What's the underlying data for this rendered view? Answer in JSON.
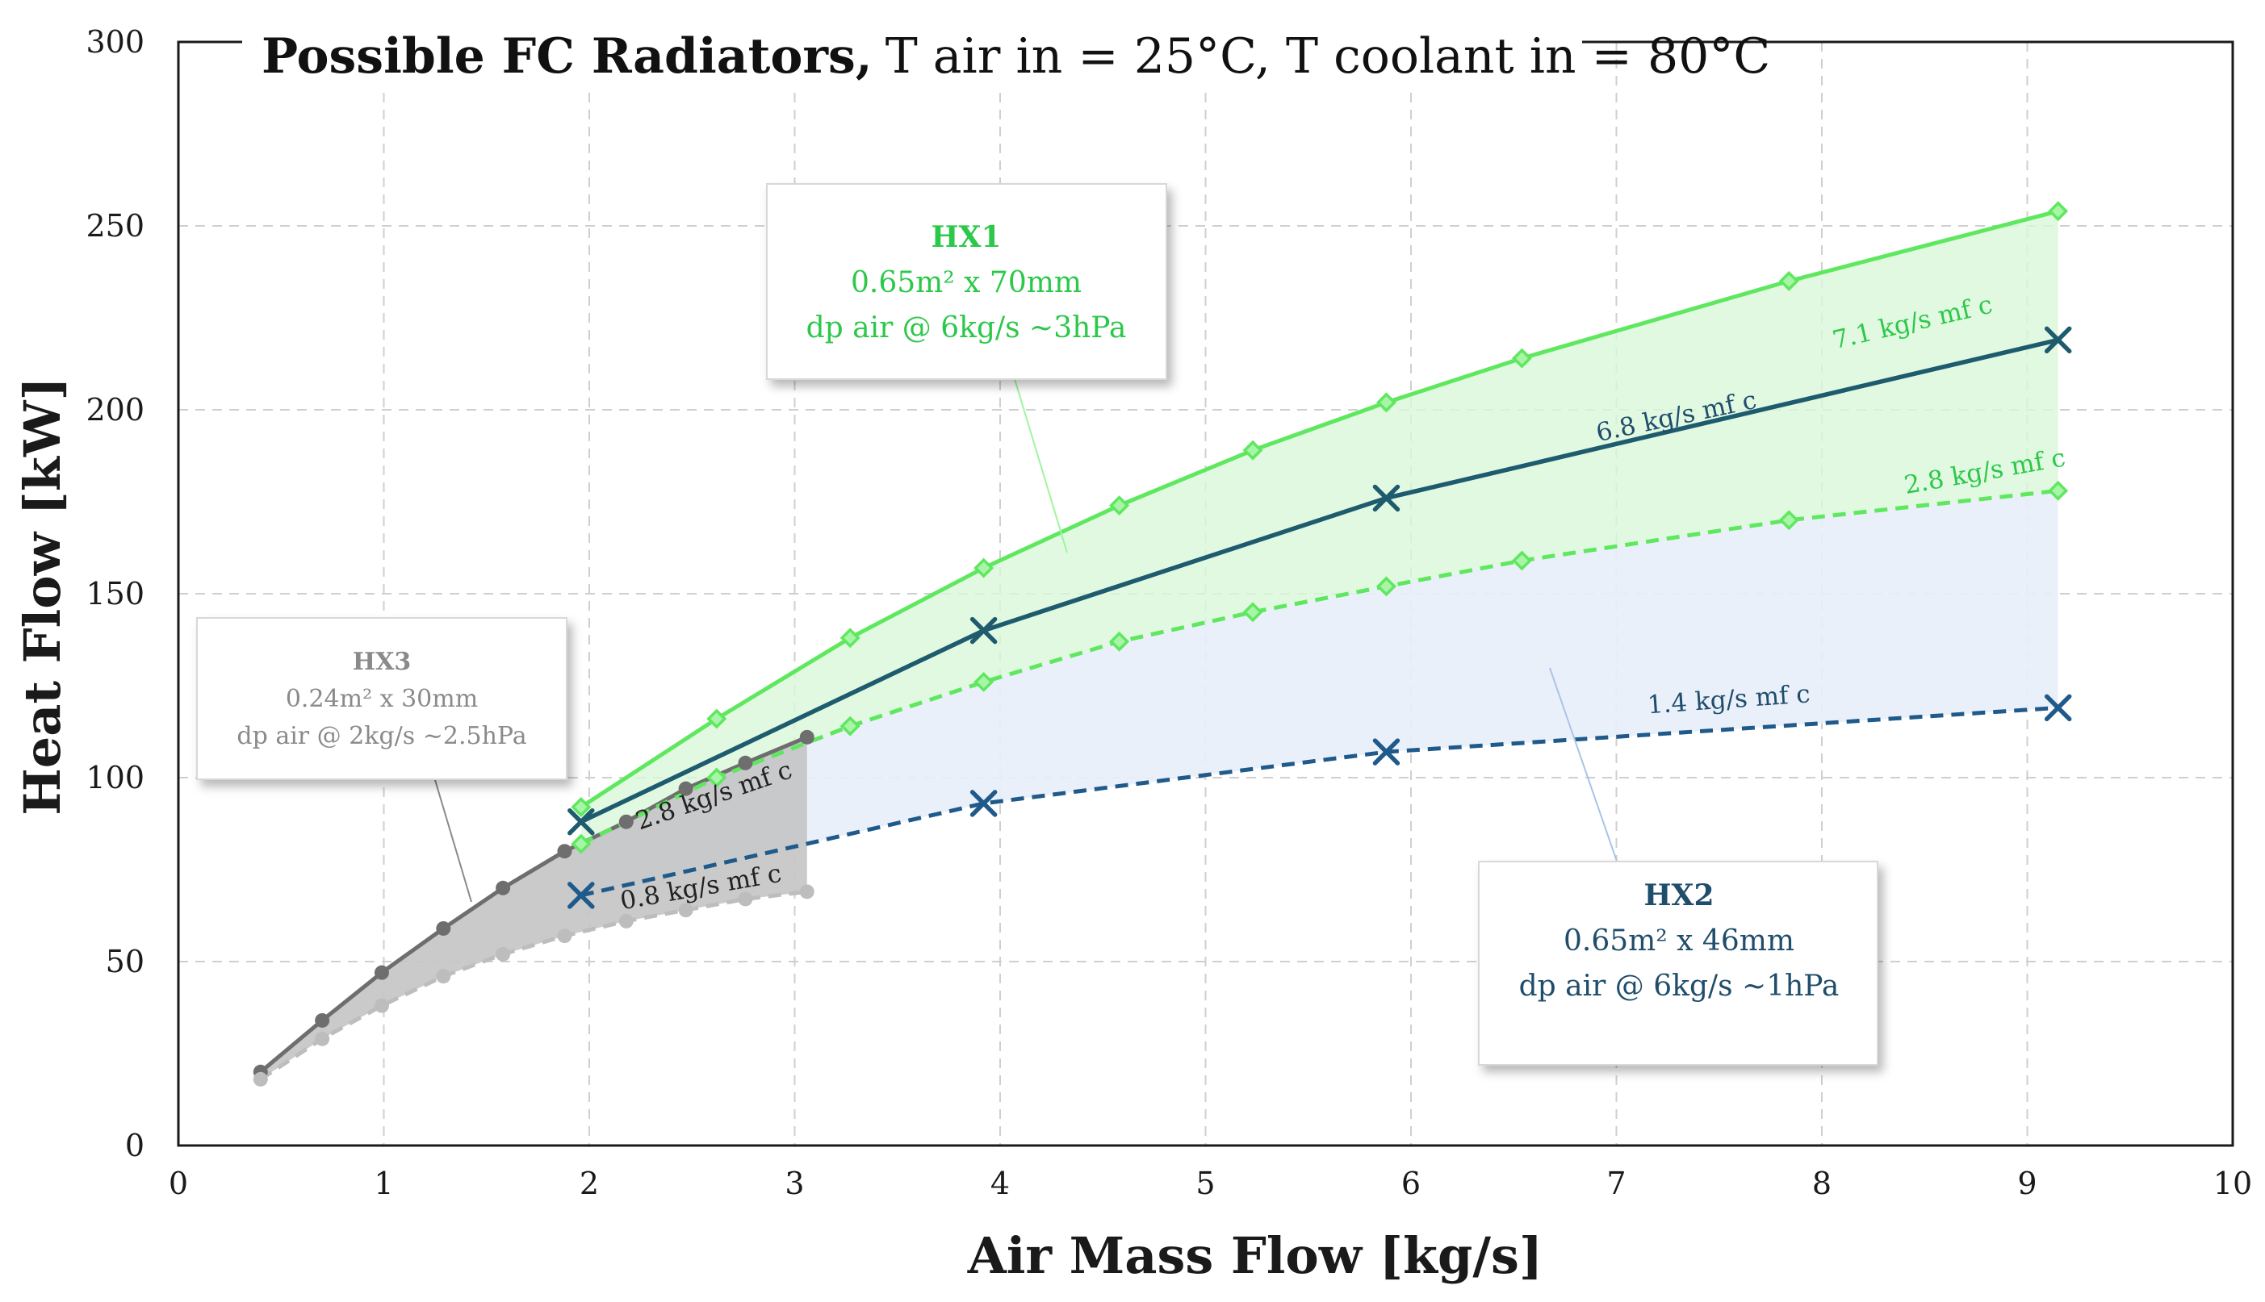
{
  "chart_data": {
    "type": "line",
    "title_bold": "Possible FC Radiators,",
    "title_rest": "T air in = 25°C, T coolant in = 80°C",
    "xlabel": "Air Mass Flow [kg/s]",
    "ylabel": "Heat Flow [kW]",
    "xlim": [
      0,
      10
    ],
    "ylim": [
      0,
      300
    ],
    "xticks": [
      "0",
      "1",
      "2",
      "3",
      "4",
      "5",
      "6",
      "7",
      "8",
      "9",
      "10"
    ],
    "yticks": [
      "0",
      "50",
      "100",
      "150",
      "200",
      "250",
      "300"
    ],
    "grid": true,
    "colors": {
      "hx1": "#5fe85f",
      "hx2_dark": "#1e5b6e",
      "hx2_light": "#1f5a8a",
      "hx3_dark": "#6e6e6e",
      "hx3_light": "#bdbdbd",
      "hx1_fill": "#d9f7d9",
      "hx2_fill": "#e8eef9",
      "hx3_fill": "#c4c4c4"
    },
    "series": [
      {
        "name": "HX1 7.1 kg/s mf c",
        "label": "7.1 kg/s mf c",
        "group": "HX1",
        "style": "solid",
        "marker": "diamond",
        "x": [
          1.96,
          2.62,
          3.27,
          3.92,
          4.58,
          5.23,
          5.88,
          6.54,
          7.84,
          9.15
        ],
        "y": [
          92,
          116,
          138,
          157,
          174,
          189,
          202,
          214,
          235,
          254
        ]
      },
      {
        "name": "HX1 2.8 kg/s mf c",
        "label": "2.8 kg/s mf c",
        "group": "HX1",
        "style": "dashed",
        "marker": "diamond",
        "x": [
          1.96,
          2.62,
          3.27,
          3.92,
          4.58,
          5.23,
          5.88,
          6.54,
          7.84,
          9.15
        ],
        "y": [
          82,
          100,
          114,
          126,
          137,
          145,
          152,
          159,
          170,
          178
        ]
      },
      {
        "name": "HX2 6.8 kg/s mf c",
        "label": "6.8 kg/s mf c",
        "group": "HX2",
        "style": "solid",
        "marker": "x",
        "x": [
          1.96,
          3.92,
          5.88,
          9.15
        ],
        "y": [
          88,
          140,
          176,
          219
        ]
      },
      {
        "name": "HX2 1.4 kg/s mf c",
        "label": "1.4 kg/s mf c",
        "group": "HX2",
        "style": "dashed",
        "marker": "x",
        "x": [
          1.96,
          3.92,
          5.88,
          9.15
        ],
        "y": [
          68,
          93,
          107,
          119
        ]
      },
      {
        "name": "HX3 2.8 kg/s mf c",
        "label": "2.8 kg/s mf c",
        "group": "HX3",
        "style": "solid",
        "marker": "circle",
        "x": [
          0.4,
          0.7,
          0.99,
          1.29,
          1.58,
          1.88,
          2.18,
          2.47,
          2.76,
          3.06
        ],
        "y": [
          20,
          34,
          47,
          59,
          70,
          80,
          88,
          97,
          104,
          111
        ]
      },
      {
        "name": "HX3 0.8 kg/s mf c",
        "label": "0.8 kg/s mf c",
        "group": "HX3",
        "style": "dashed",
        "marker": "circle",
        "x": [
          0.4,
          0.7,
          0.99,
          1.29,
          1.58,
          1.88,
          2.18,
          2.47,
          2.76,
          3.06
        ],
        "y": [
          18,
          29,
          38,
          46,
          52,
          57,
          61,
          64,
          67,
          69
        ]
      }
    ],
    "annotations": {
      "hx1": {
        "title": "HX1",
        "line1": "0.65m² x 70mm",
        "line2": "dp air @ 6kg/s ~3hPa"
      },
      "hx2": {
        "title": "HX2",
        "line1": "0.65m² x 46mm",
        "line2": "dp air @ 6kg/s ~1hPa"
      },
      "hx3": {
        "title": "HX3",
        "line1": "0.24m² x 30mm",
        "line2": "dp air @ 2kg/s ~2.5hPa"
      }
    }
  }
}
